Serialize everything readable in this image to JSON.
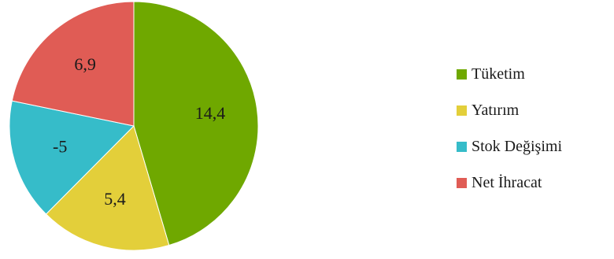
{
  "chart_data": {
    "type": "pie",
    "title": "",
    "legend_position": "right",
    "start_angle": "top",
    "direction": "clockwise",
    "slices": [
      {
        "name": "Tüketim",
        "value": 14.4,
        "label": "14,4",
        "color": "#6fa800"
      },
      {
        "name": "Yatırım",
        "value": 5.4,
        "label": "5,4",
        "color": "#e3cf3a"
      },
      {
        "name": "Stok Değişimi",
        "value": -5,
        "label": "-5",
        "color": "#36bcc9"
      },
      {
        "name": "Net İhracat",
        "value": 6.9,
        "label": "6,9",
        "color": "#e05c55"
      }
    ]
  }
}
